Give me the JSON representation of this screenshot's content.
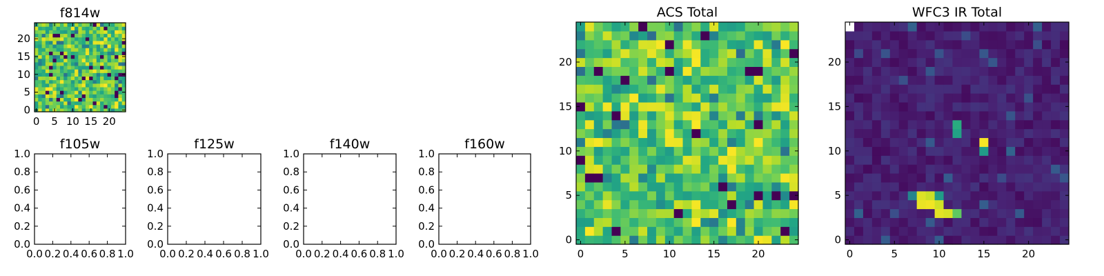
{
  "colors": {
    "colormap": "viridis",
    "axes_edge": "#000000",
    "background": "#ffffff"
  },
  "chart_data": [
    {
      "type": "heatmap",
      "title": "f814w",
      "shape": [
        25,
        25
      ],
      "xticks": [
        "0",
        "5",
        "10",
        "15",
        "20"
      ],
      "yticks": [
        "0",
        "5",
        "10",
        "15",
        "20"
      ],
      "xlim": [
        -0.5,
        24.5
      ],
      "ylim": [
        -0.5,
        24.5
      ],
      "values_description_note": "",
      "pattern": "noise",
      "seed": 814
    },
    {
      "type": "empty",
      "title": "f105w",
      "xticks": [
        "0.0",
        "0.2",
        "0.4",
        "0.6",
        "0.8",
        "1.0"
      ],
      "yticks": [
        "0.0",
        "0.2",
        "0.4",
        "0.6",
        "0.8",
        "1.0"
      ],
      "xlim": [
        0,
        1
      ],
      "ylim": [
        0,
        1
      ]
    },
    {
      "type": "empty",
      "title": "f125w",
      "xticks": [
        "0.0",
        "0.2",
        "0.4",
        "0.6",
        "0.8",
        "1.0"
      ],
      "yticks": [
        "0.0",
        "0.2",
        "0.4",
        "0.6",
        "0.8",
        "1.0"
      ],
      "xlim": [
        0,
        1
      ],
      "ylim": [
        0,
        1
      ]
    },
    {
      "type": "empty",
      "title": "f140w",
      "xticks": [
        "0.0",
        "0.2",
        "0.4",
        "0.6",
        "0.8",
        "1.0"
      ],
      "yticks": [
        "0.0",
        "0.2",
        "0.4",
        "0.6",
        "0.8",
        "1.0"
      ],
      "xlim": [
        0,
        1
      ],
      "ylim": [
        0,
        1
      ]
    },
    {
      "type": "empty",
      "title": "f160w",
      "xticks": [
        "0.0",
        "0.2",
        "0.4",
        "0.6",
        "0.8",
        "1.0"
      ],
      "yticks": [
        "0.0",
        "0.2",
        "0.4",
        "0.6",
        "0.8",
        "1.0"
      ],
      "xlim": [
        0,
        1
      ],
      "ylim": [
        0,
        1
      ]
    },
    {
      "type": "heatmap",
      "title": "ACS Total",
      "shape": [
        25,
        25
      ],
      "xticks": [
        "0",
        "5",
        "10",
        "15",
        "20"
      ],
      "yticks": [
        "0",
        "5",
        "10",
        "15",
        "20"
      ],
      "xlim": [
        -0.5,
        24.5
      ],
      "ylim": [
        -0.5,
        24.5
      ],
      "pattern": "noise",
      "seed": 1234
    },
    {
      "type": "heatmap",
      "title": "WFC3 IR Total",
      "shape": [
        25,
        25
      ],
      "xticks": [
        "0",
        "5",
        "10",
        "15",
        "20"
      ],
      "yticks": [
        "0",
        "5",
        "10",
        "15",
        "20"
      ],
      "xlim": [
        -0.5,
        24.5
      ],
      "ylim": [
        -0.5,
        24.5
      ],
      "pattern": "faint-background-with-sources",
      "seed": 77,
      "bright_pixels": [
        {
          "x": 8,
          "y": 5,
          "value": 0.95
        },
        {
          "x": 9,
          "y": 5,
          "value": 0.92
        },
        {
          "x": 8,
          "y": 4,
          "value": 0.97
        },
        {
          "x": 9,
          "y": 4,
          "value": 0.98
        },
        {
          "x": 10,
          "y": 4,
          "value": 0.93
        },
        {
          "x": 10,
          "y": 3,
          "value": 0.96
        },
        {
          "x": 11,
          "y": 3,
          "value": 0.94
        },
        {
          "x": 12,
          "y": 3,
          "value": 0.75
        },
        {
          "x": 7,
          "y": 5,
          "value": 0.45
        },
        {
          "x": 10,
          "y": 5,
          "value": 0.55
        },
        {
          "x": 15,
          "y": 11,
          "value": 0.99
        },
        {
          "x": 15,
          "y": 10,
          "value": 0.55
        },
        {
          "x": 12,
          "y": 13,
          "value": 0.62
        },
        {
          "x": 12,
          "y": 12,
          "value": 0.58
        },
        {
          "x": 0,
          "y": 24,
          "value": 1.2
        }
      ]
    }
  ]
}
